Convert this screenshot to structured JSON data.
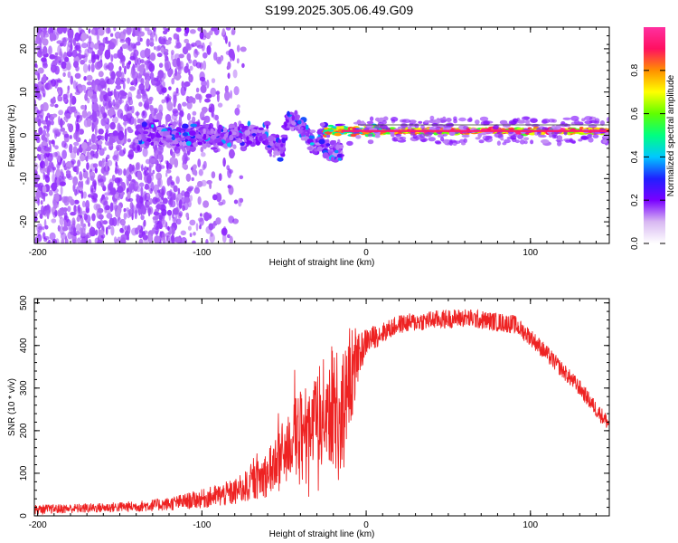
{
  "title": "S199.2025.305.06.49.G09",
  "chart_data": [
    {
      "type": "heatmap",
      "name": "spectrogram",
      "xlabel": "Height of straight line (km)",
      "ylabel": "Frequency (Hz)",
      "xlim": [
        -202,
        148
      ],
      "ylim": [
        -25,
        25
      ],
      "x_ticks": [
        -200,
        -100,
        0,
        100
      ],
      "x_tick_labels": [
        "-200",
        "-100",
        "0",
        "100"
      ],
      "y_ticks": [
        -20,
        -10,
        0,
        10,
        20
      ],
      "y_tick_labels": [
        "-20",
        "-10",
        "0",
        "10",
        "20"
      ],
      "grid": false,
      "main_frequency_hz": 1,
      "colorbar": {
        "label": "Normalized spectral amplitude",
        "range": [
          0,
          1
        ],
        "ticks": [
          0,
          0.2,
          0.4,
          0.6,
          0.8
        ],
        "tick_labels": [
          "0.0",
          "0.2",
          "0.4",
          "0.6",
          "0.8"
        ],
        "colors": [
          "#ffffff",
          "#d8b8f2",
          "#7a00ff",
          "#2020ff",
          "#00c8ff",
          "#00ff80",
          "#60ff00",
          "#ffff00",
          "#ff9000",
          "#ff1060",
          "#ff30a0"
        ]
      }
    },
    {
      "type": "line",
      "name": "snr",
      "xlabel": "Height of straight line (km)",
      "ylabel": "SNR (10 * v/v)",
      "xlim": [
        -202,
        148
      ],
      "ylim": [
        0,
        510
      ],
      "x_ticks": [
        -200,
        -100,
        0,
        100
      ],
      "x_tick_labels": [
        "-200",
        "-100",
        "0",
        "100"
      ],
      "y_ticks": [
        0,
        100,
        200,
        300,
        400,
        500
      ],
      "y_tick_labels": [
        "0",
        "100",
        "200",
        "300",
        "400",
        "500"
      ],
      "grid": false,
      "color": "#ee2222",
      "envelope": {
        "x": [
          -202,
          -170,
          -140,
          -120,
          -100,
          -80,
          -70,
          -60,
          -50,
          -40,
          -30,
          -25,
          -20,
          -15,
          -10,
          -5,
          0,
          10,
          20,
          40,
          60,
          80,
          90,
          100,
          110,
          120,
          130,
          140,
          148
        ],
        "mean": [
          15,
          18,
          22,
          28,
          40,
          55,
          75,
          100,
          150,
          200,
          230,
          250,
          260,
          240,
          300,
          370,
          410,
          430,
          450,
          460,
          465,
          455,
          450,
          420,
          380,
          340,
          300,
          250,
          215
        ],
        "spread": [
          7,
          7,
          8,
          10,
          14,
          20,
          25,
          35,
          50,
          60,
          70,
          80,
          90,
          85,
          70,
          35,
          20,
          15,
          14,
          14,
          14,
          14,
          14,
          13,
          13,
          12,
          12,
          12,
          12
        ]
      }
    }
  ]
}
